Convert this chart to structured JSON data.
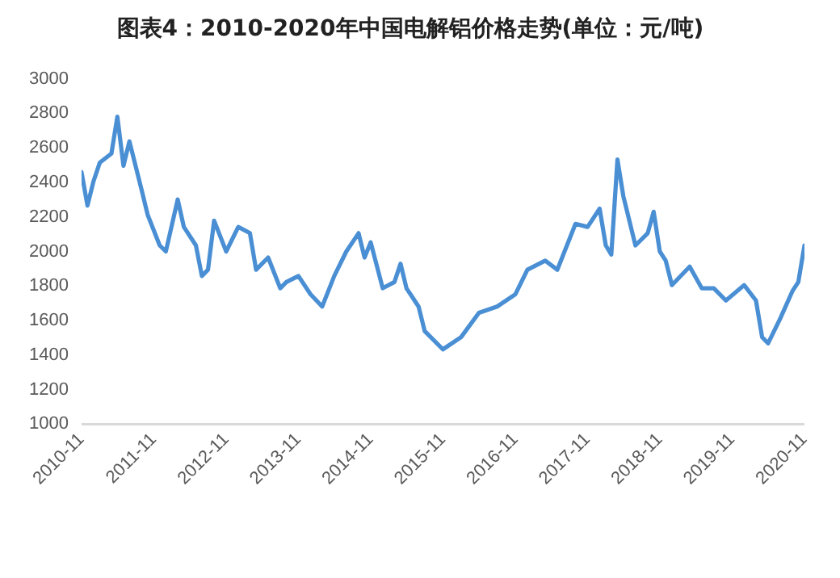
{
  "chart_data": {
    "type": "line",
    "title": "图表4：2010-2020年中国电解铝价格走势(单位：元/吨)",
    "x": [
      "2010-11",
      "2010-12",
      "2011-01",
      "2011-02",
      "2011-04",
      "2011-05",
      "2011-06",
      "2011-07",
      "2011-08",
      "2011-09",
      "2011-10",
      "2011-12",
      "2012-01",
      "2012-03",
      "2012-04",
      "2012-06",
      "2012-07",
      "2012-08",
      "2012-09",
      "2012-11",
      "2013-01",
      "2013-03",
      "2013-04",
      "2013-06",
      "2013-08",
      "2013-09",
      "2013-11",
      "2014-01",
      "2014-03",
      "2014-05",
      "2014-07",
      "2014-09",
      "2014-10",
      "2014-11",
      "2015-01",
      "2015-03",
      "2015-04",
      "2015-05",
      "2015-07",
      "2015-08",
      "2015-11",
      "2016-02",
      "2016-05",
      "2016-08",
      "2016-11",
      "2017-01",
      "2017-04",
      "2017-06",
      "2017-09",
      "2017-11",
      "2018-01",
      "2018-02",
      "2018-03",
      "2018-04",
      "2018-05",
      "2018-07",
      "2018-09",
      "2018-10",
      "2018-11",
      "2018-12",
      "2019-01",
      "2019-04",
      "2019-06",
      "2019-08",
      "2019-10",
      "2020-01",
      "2020-03",
      "2020-04",
      "2020-05",
      "2020-07",
      "2020-09",
      "2020-10",
      "2020-11"
    ],
    "series": [
      {
        "color": "#4a8fd4",
        "values": [
          2460,
          2266,
          2408,
          2514,
          2567,
          2780,
          2496,
          2638,
          2496,
          2355,
          2213,
          2035,
          2000,
          2301,
          2142,
          2035,
          1858,
          1894,
          2178,
          2000,
          2142,
          2106,
          1894,
          1965,
          1787,
          1823,
          1858,
          1752,
          1681,
          1858,
          2000,
          2106,
          1965,
          2053,
          1787,
          1823,
          1929,
          1787,
          1681,
          1539,
          1433,
          1504,
          1645,
          1681,
          1752,
          1894,
          1947,
          1894,
          2160,
          2142,
          2248,
          2035,
          1982,
          2532,
          2319,
          2035,
          2106,
          2230,
          2000,
          1947,
          1805,
          1912,
          1787,
          1787,
          1716,
          1805,
          1716,
          1504,
          1468,
          1610,
          1770,
          1823,
          2035
        ]
      }
    ],
    "xlim": [
      "2010-11",
      "2020-11"
    ],
    "xticks": [
      "2010-11",
      "2011-11",
      "2012-11",
      "2013-11",
      "2014-11",
      "2015-11",
      "2016-11",
      "2017-11",
      "2018-11",
      "2019-11",
      "2020-11"
    ],
    "ylim": [
      1000,
      3000
    ],
    "yticks": [
      1000,
      1200,
      1400,
      1600,
      1800,
      2000,
      2200,
      2400,
      2600,
      2800,
      3000
    ],
    "grid": false,
    "legend": false,
    "marker": "none",
    "line_style": "solid"
  }
}
